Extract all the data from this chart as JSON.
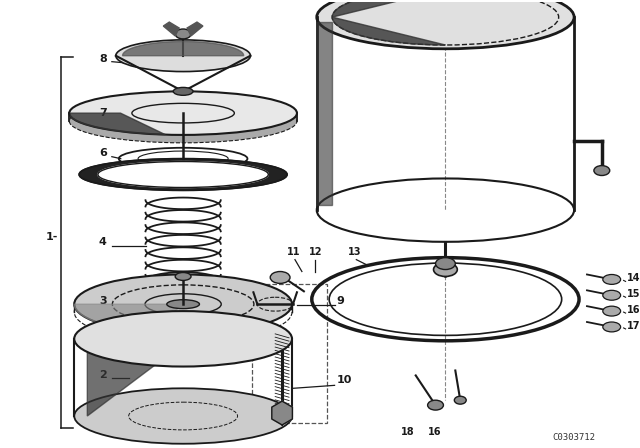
{
  "bg_color": "#ffffff",
  "line_color": "#1a1a1a",
  "watermark": "C0303712",
  "fig_w": 6.4,
  "fig_h": 4.48,
  "dpi": 100
}
